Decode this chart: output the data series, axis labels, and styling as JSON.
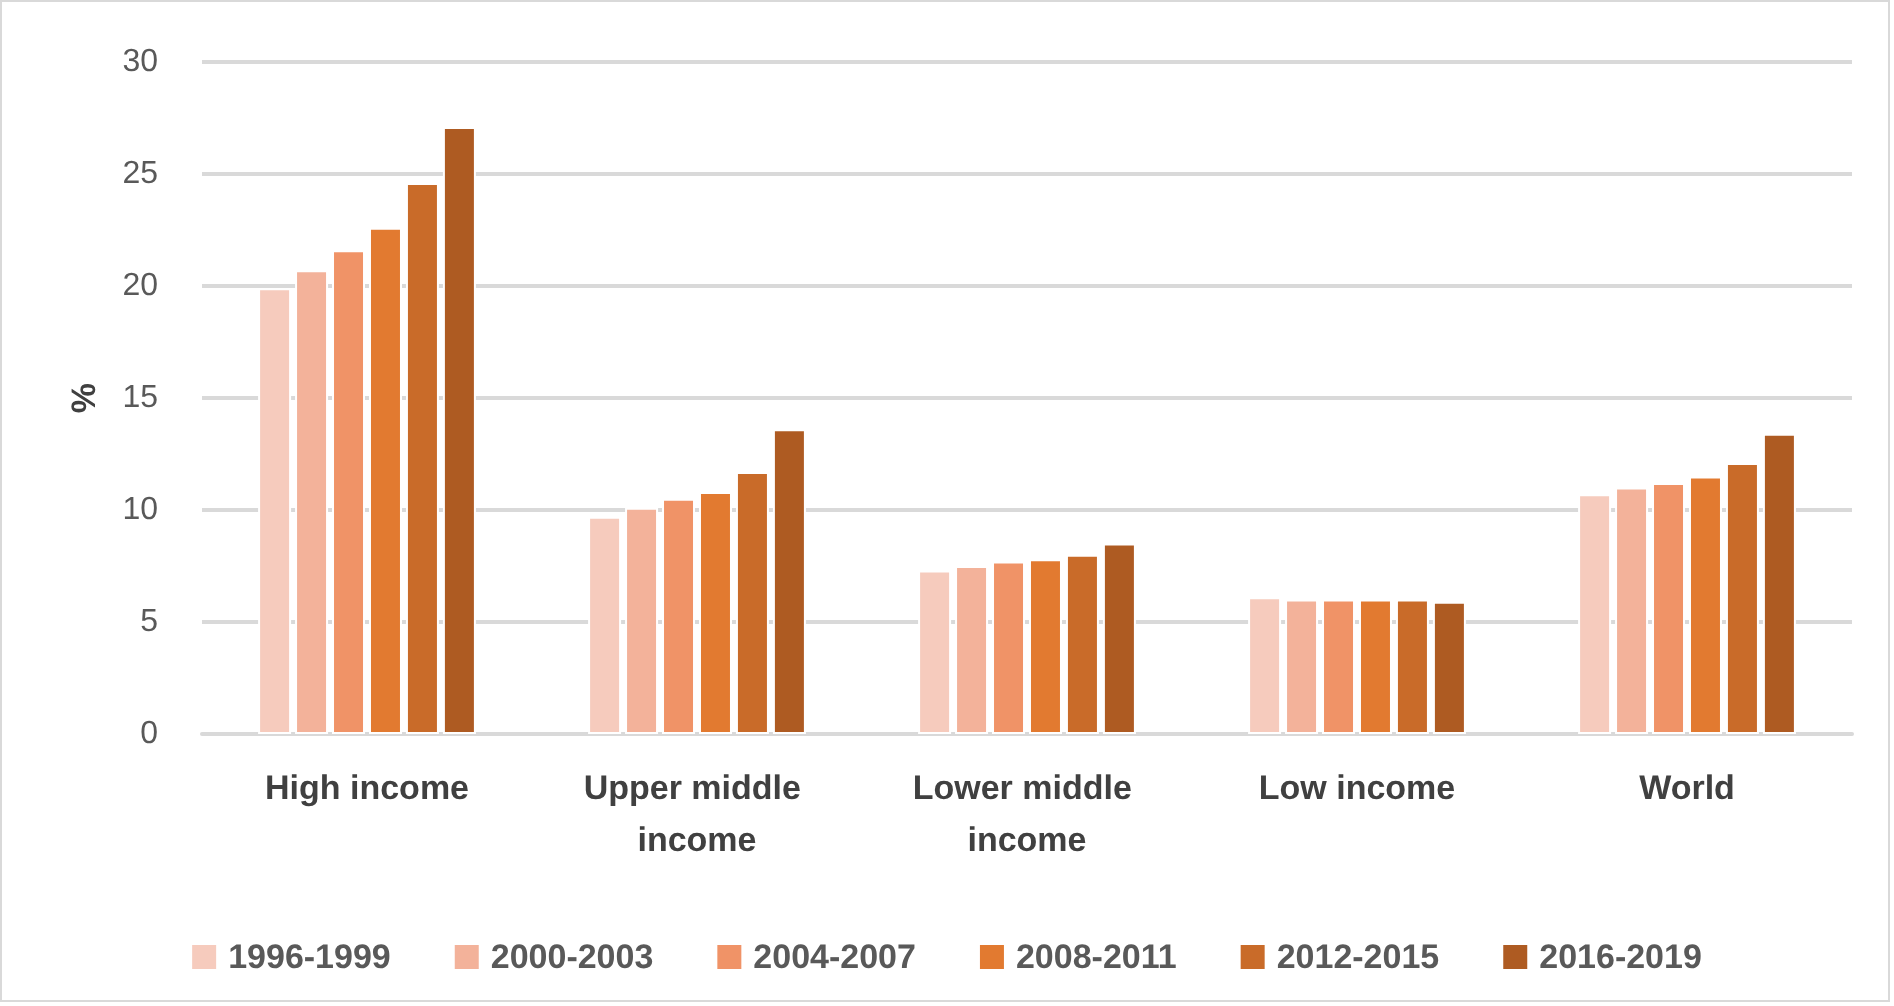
{
  "chart_data": {
    "type": "bar",
    "ylabel": "%",
    "categories": [
      "High income",
      "Upper middle income",
      "Lower middle income",
      "Low income",
      "World"
    ],
    "series": [
      {
        "name": "1996-1999",
        "color": "#f6cbbd",
        "values": [
          19.9,
          9.7,
          7.3,
          6.1,
          10.7
        ]
      },
      {
        "name": "2000-2003",
        "color": "#f3b29a",
        "values": [
          20.7,
          10.1,
          7.5,
          6.0,
          11.0
        ]
      },
      {
        "name": "2004-2007",
        "color": "#f09367",
        "values": [
          21.6,
          10.5,
          7.7,
          6.0,
          11.2
        ]
      },
      {
        "name": "2008-2011",
        "color": "#e27a30",
        "values": [
          22.6,
          10.8,
          7.8,
          6.0,
          11.5
        ]
      },
      {
        "name": "2012-2015",
        "color": "#c96b29",
        "values": [
          24.6,
          11.7,
          8.0,
          6.0,
          12.1
        ]
      },
      {
        "name": "2016-2019",
        "color": "#ae5b22",
        "values": [
          27.1,
          13.6,
          8.5,
          5.9,
          13.4
        ]
      }
    ],
    "ylim": [
      0,
      30
    ],
    "yticks": [
      0,
      5,
      10,
      15,
      20,
      25,
      30
    ],
    "grid": "y",
    "legend": "bottom"
  }
}
